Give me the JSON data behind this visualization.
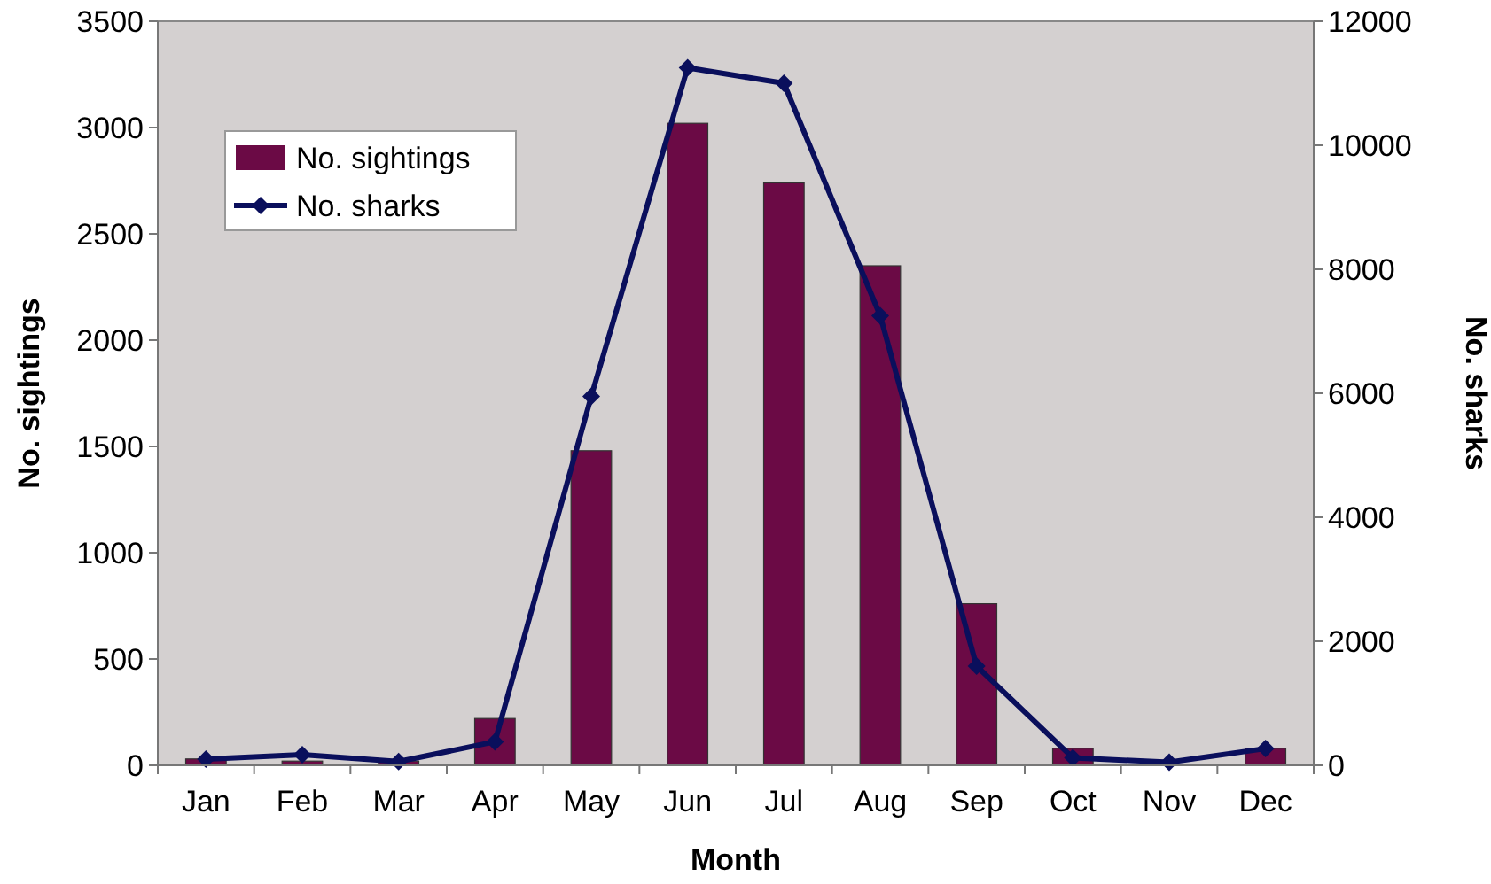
{
  "chart_data": {
    "type": "bar",
    "xlabel": "Month",
    "ylabel": "No. sightings",
    "y2label": "No. sharks",
    "categories": [
      "Jan",
      "Feb",
      "Mar",
      "Apr",
      "May",
      "Jun",
      "Jul",
      "Aug",
      "Sep",
      "Oct",
      "Nov",
      "Dec"
    ],
    "series": [
      {
        "name": "No. sightings",
        "color": "#6b0a45",
        "values": [
          30,
          20,
          20,
          220,
          1480,
          3020,
          2740,
          2350,
          760,
          80,
          0,
          80
        ]
      },
      {
        "name": "No. sharks",
        "type": "line",
        "axis": "y2",
        "color": "#0a0f5c",
        "marker": "diamond",
        "values": [
          100,
          170,
          60,
          380,
          5950,
          11250,
          11000,
          7250,
          1600,
          120,
          50,
          270
        ]
      }
    ],
    "ylim": [
      0,
      3500
    ],
    "yticks": [
      0,
      500,
      1000,
      1500,
      2000,
      2500,
      3000,
      3500
    ],
    "y2lim": [
      0,
      12000
    ],
    "y2ticks": [
      0,
      2000,
      4000,
      6000,
      8000,
      10000,
      12000
    ],
    "grid": false,
    "legend": "top left"
  }
}
